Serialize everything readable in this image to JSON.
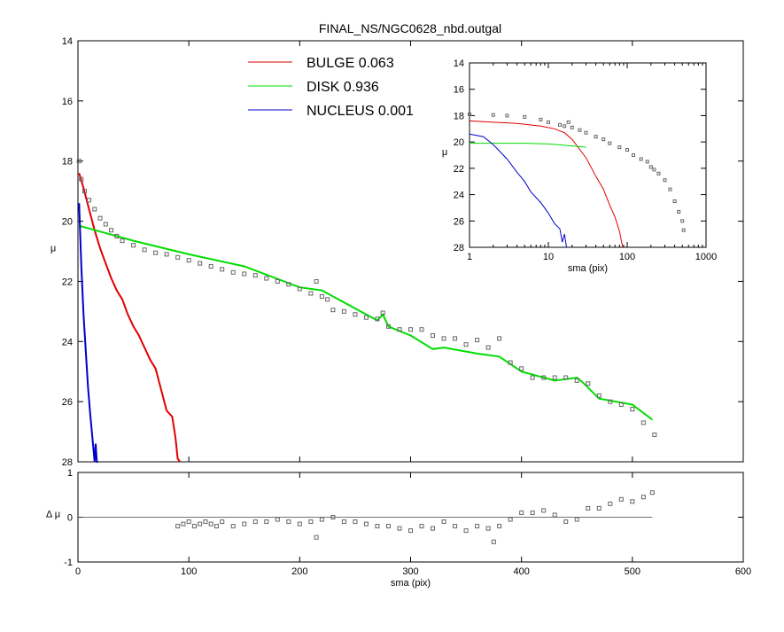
{
  "title": "FINAL_NS/NGC0628_nbd.outgal",
  "colors": {
    "bulge": "#e00000",
    "disk": "#00dd00",
    "nucleus": "#0000cc",
    "data": "#666666"
  },
  "legend": [
    {
      "label": "BULGE",
      "value": "0.063",
      "color": "#e00000"
    },
    {
      "label": "DISK",
      "value": "0.936",
      "color": "#00dd00"
    },
    {
      "label": "NUCLEUS",
      "value": "0.001",
      "color": "#0000cc"
    }
  ],
  "chart_data": [
    {
      "type": "line",
      "title": "FINAL_NS/NGC0628_nbd.outgal",
      "xlabel": "",
      "ylabel": "μ",
      "xlim": [
        0,
        600
      ],
      "ylim": [
        28,
        14
      ],
      "y_reversed": true,
      "xticks": [
        0,
        100,
        200,
        300,
        400,
        500,
        600
      ],
      "yticks": [
        14,
        16,
        18,
        20,
        22,
        24,
        26,
        28
      ],
      "series": [
        {
          "name": "BULGE",
          "type": "line",
          "x": [
            1,
            5,
            10,
            15,
            20,
            25,
            30,
            35,
            40,
            45,
            50,
            55,
            60,
            65,
            70,
            75,
            80,
            85,
            88,
            90,
            92
          ],
          "y": [
            18.4,
            18.9,
            19.6,
            20.3,
            20.9,
            21.4,
            21.9,
            22.3,
            22.6,
            23.1,
            23.5,
            23.8,
            24.2,
            24.6,
            24.9,
            25.6,
            26.3,
            26.5,
            27.2,
            27.9,
            28.0
          ]
        },
        {
          "name": "DISK",
          "type": "line",
          "x": [
            1,
            50,
            100,
            150,
            200,
            220,
            250,
            270,
            275,
            280,
            300,
            320,
            330,
            360,
            380,
            400,
            430,
            450,
            455,
            470,
            500,
            518
          ],
          "y": [
            20.15,
            20.65,
            21.1,
            21.5,
            22.2,
            22.3,
            22.9,
            23.3,
            23.1,
            23.5,
            23.8,
            24.25,
            24.2,
            24.4,
            24.5,
            25.0,
            25.3,
            25.2,
            25.35,
            25.9,
            26.1,
            26.6
          ]
        },
        {
          "name": "NUCLEUS",
          "type": "line",
          "x": [
            1,
            3,
            5,
            7,
            9,
            11,
            13,
            15,
            16,
            17,
            18
          ],
          "y": [
            19.4,
            21.5,
            23.1,
            24.3,
            25.5,
            26.4,
            27.2,
            28.0,
            27.4,
            28.0,
            28.0
          ]
        },
        {
          "name": "",
          "type": "scatter",
          "x": [
            1,
            3,
            6,
            10,
            15,
            20,
            25,
            30,
            35,
            40,
            50,
            60,
            70,
            80,
            90,
            100,
            110,
            120,
            130,
            140,
            150,
            160,
            170,
            180,
            190,
            200,
            210,
            215,
            220,
            225,
            230,
            240,
            250,
            260,
            270,
            275,
            280,
            290,
            300,
            310,
            320,
            330,
            340,
            350,
            360,
            370,
            380,
            390,
            400,
            410,
            420,
            430,
            440,
            450,
            460,
            470,
            480,
            490,
            500,
            510,
            520
          ],
          "y": [
            18.0,
            18.6,
            19.0,
            19.3,
            19.6,
            19.9,
            20.1,
            20.3,
            20.5,
            20.65,
            20.8,
            20.95,
            21.05,
            21.1,
            21.2,
            21.3,
            21.4,
            21.5,
            21.6,
            21.7,
            21.75,
            21.8,
            21.9,
            22.0,
            22.1,
            22.25,
            22.4,
            22.0,
            22.5,
            22.6,
            22.95,
            23.0,
            23.1,
            23.2,
            23.25,
            23.05,
            23.5,
            23.6,
            23.6,
            23.6,
            23.8,
            23.9,
            23.9,
            24.1,
            23.95,
            24.2,
            23.9,
            24.7,
            24.9,
            25.2,
            25.2,
            25.2,
            25.2,
            25.3,
            25.4,
            25.8,
            26.0,
            26.1,
            26.25,
            26.7,
            27.1
          ]
        }
      ]
    },
    {
      "type": "scatter",
      "xlabel": "sma (pix)",
      "ylabel": "Δ μ",
      "xlim": [
        0,
        600
      ],
      "ylim": [
        -1,
        1
      ],
      "xticks": [
        0,
        100,
        200,
        300,
        400,
        500,
        600
      ],
      "yticks": [
        1,
        0,
        -1
      ],
      "reference_line": 0,
      "series": [
        {
          "name": "",
          "type": "scatter",
          "x": [
            90,
            95,
            100,
            105,
            110,
            115,
            120,
            125,
            130,
            140,
            150,
            160,
            170,
            180,
            190,
            200,
            210,
            215,
            220,
            230,
            240,
            250,
            260,
            270,
            280,
            290,
            300,
            310,
            320,
            330,
            340,
            350,
            360,
            370,
            375,
            380,
            390,
            400,
            410,
            420,
            430,
            440,
            450,
            460,
            470,
            480,
            490,
            500,
            510,
            518
          ],
          "y": [
            -0.2,
            -0.15,
            -0.1,
            -0.2,
            -0.15,
            -0.1,
            -0.15,
            -0.2,
            -0.1,
            -0.2,
            -0.15,
            -0.1,
            -0.1,
            -0.05,
            -0.1,
            -0.15,
            -0.1,
            -0.45,
            -0.05,
            0.0,
            -0.1,
            -0.1,
            -0.15,
            -0.2,
            -0.2,
            -0.25,
            -0.3,
            -0.2,
            -0.25,
            -0.1,
            -0.2,
            -0.3,
            -0.2,
            -0.25,
            -0.55,
            -0.2,
            -0.05,
            0.1,
            0.1,
            0.15,
            0.05,
            -0.1,
            -0.05,
            0.2,
            0.2,
            0.3,
            0.4,
            0.35,
            0.45,
            0.55
          ]
        }
      ]
    },
    {
      "type": "line",
      "xlabel": "sma (pix)",
      "ylabel": "μ",
      "x_scale": "log",
      "xlim": [
        1,
        1000
      ],
      "ylim": [
        28,
        14
      ],
      "y_reversed": true,
      "xticks": [
        1,
        10,
        100,
        1000
      ],
      "yticks": [
        14,
        16,
        18,
        20,
        22,
        24,
        26,
        28
      ],
      "series": [
        {
          "name": "BULGE",
          "type": "line",
          "x": [
            1,
            2,
            4,
            8,
            12,
            16,
            20,
            30,
            40,
            50,
            60,
            70,
            80,
            85,
            88
          ],
          "y": [
            18.4,
            18.5,
            18.6,
            18.8,
            19.0,
            19.3,
            19.8,
            21.2,
            22.6,
            23.6,
            24.8,
            25.7,
            26.8,
            27.6,
            28.0
          ]
        },
        {
          "name": "DISK",
          "type": "line",
          "x": [
            1,
            5,
            10,
            20,
            30
          ],
          "y": [
            20.1,
            20.1,
            20.15,
            20.3,
            20.4
          ]
        },
        {
          "name": "NUCLEUS",
          "type": "line",
          "x": [
            1,
            1.5,
            2,
            3,
            4,
            5,
            6,
            8,
            10,
            12,
            14,
            15,
            16,
            17
          ],
          "y": [
            19.4,
            19.6,
            20.2,
            21.3,
            22.3,
            23.0,
            23.8,
            24.6,
            25.4,
            26.2,
            26.6,
            27.6,
            27.0,
            28.0
          ]
        },
        {
          "name": "",
          "type": "scatter",
          "x": [
            1,
            2,
            3,
            5,
            8,
            10,
            14,
            16,
            18,
            20,
            25,
            30,
            40,
            50,
            60,
            80,
            100,
            120,
            150,
            180,
            200,
            220,
            250,
            300,
            350,
            400,
            450,
            500,
            520
          ],
          "y": [
            17.9,
            17.95,
            18.0,
            18.1,
            18.3,
            18.5,
            18.7,
            18.8,
            18.5,
            18.9,
            19.1,
            19.3,
            19.6,
            19.8,
            20.1,
            20.4,
            20.6,
            21.0,
            21.3,
            21.5,
            21.9,
            22.1,
            22.4,
            22.9,
            23.6,
            24.5,
            25.3,
            26.0,
            26.7
          ]
        }
      ]
    }
  ]
}
